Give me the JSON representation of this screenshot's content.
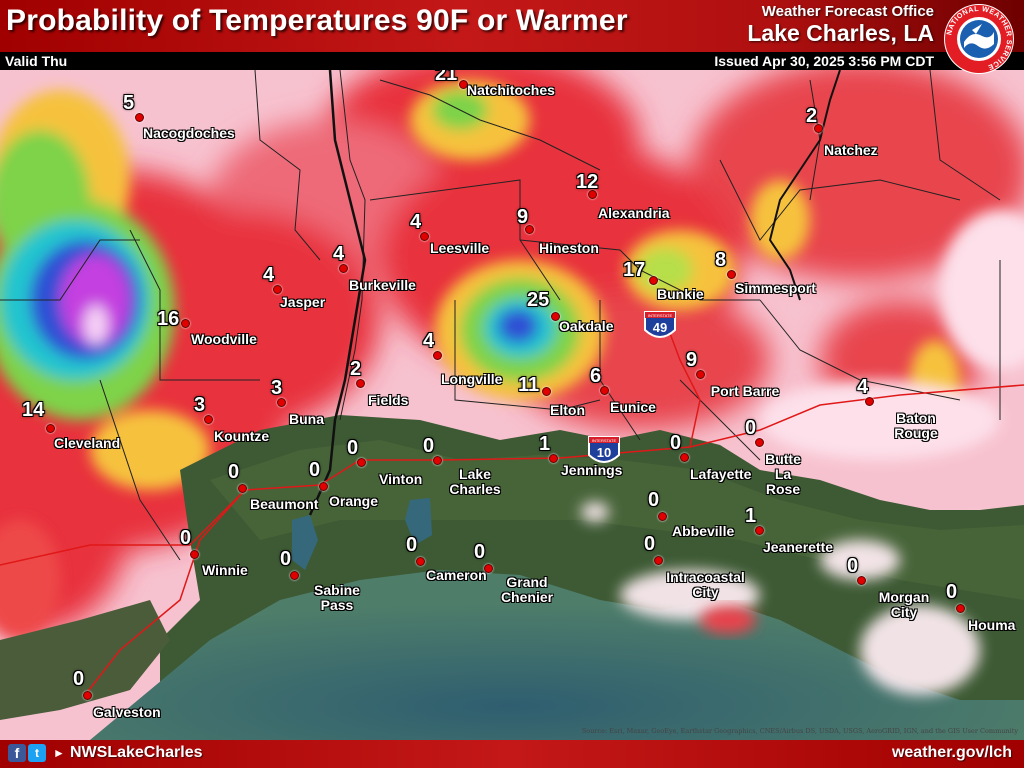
{
  "header": {
    "title": "Probability of Temperatures 90F or Warmer",
    "office_label": "Weather Forecast Office",
    "office_name": "Lake Charles, LA",
    "valid": "Valid Thu",
    "issued": "Issued Apr 30, 2025 3:56 PM CDT"
  },
  "logo": {
    "ring_text": "NATIONAL WEATHER SERVICE",
    "icon": "nws-logo"
  },
  "footer": {
    "facebook_icon": "f",
    "twitter_icon": "t",
    "youtube_icon": "►",
    "handle": "NWSLakeCharles",
    "website": "weather.gov/lch"
  },
  "attribution": "Source: Esri, Maxar, GeoEye, Earthstar Geographics, CNES/Airbus DS, USDA, USGS, AeroGRID, IGN, and the GIS User Community",
  "highway_shields": [
    {
      "label": "INTERSTATE",
      "number": "49"
    },
    {
      "label": "INTERSTATE",
      "number": "10"
    }
  ],
  "color_scale": {
    "water": "#3a6e7a",
    "land_low": "#3d5a34",
    "very_low": "#fde6ee",
    "low": "#f6a3b6",
    "moderate": "#e8323e",
    "elevated": "#f6c23c",
    "high": "#7ed34a",
    "higher": "#22c5cf",
    "very_high": "#2f4fd4",
    "peak": "#c43fe0"
  },
  "cities": [
    {
      "name": "Natchitoches",
      "value": "21"
    },
    {
      "name": "Nacogdoches",
      "value": "5"
    },
    {
      "name": "Natchez",
      "value": "2"
    },
    {
      "name": "Alexandria",
      "value": "12"
    },
    {
      "name": "Leesville",
      "value": "4"
    },
    {
      "name": "Hineston",
      "value": "9"
    },
    {
      "name": "Burkeville",
      "value": "4"
    },
    {
      "name": "Jasper",
      "value": "4"
    },
    {
      "name": "Bunkie",
      "value": "17"
    },
    {
      "name": "Simmesport",
      "value": "8"
    },
    {
      "name": "Woodville",
      "value": "16"
    },
    {
      "name": "Oakdale",
      "value": "25"
    },
    {
      "name": "Fields",
      "value": "2"
    },
    {
      "name": "Longville",
      "value": "4"
    },
    {
      "name": "Elton",
      "value": "11"
    },
    {
      "name": "Eunice",
      "value": "6"
    },
    {
      "name": "Port Barre",
      "value": "9"
    },
    {
      "name": "Baton Rouge",
      "value": "4"
    },
    {
      "name": "Cleveland",
      "value": "14"
    },
    {
      "name": "Kountze",
      "value": "3"
    },
    {
      "name": "Buna",
      "value": "3"
    },
    {
      "name": "Lake Charles",
      "value": "0"
    },
    {
      "name": "Vinton",
      "value": "0"
    },
    {
      "name": "Jennings",
      "value": "1"
    },
    {
      "name": "Lafayette",
      "value": "0"
    },
    {
      "name": "Butte La Rose",
      "value": "0"
    },
    {
      "name": "Beaumont",
      "value": "0"
    },
    {
      "name": "Orange",
      "value": "0"
    },
    {
      "name": "Abbeville",
      "value": "0"
    },
    {
      "name": "Jeanerette",
      "value": "1"
    },
    {
      "name": "Winnie",
      "value": "0"
    },
    {
      "name": "Sabine Pass",
      "value": "0"
    },
    {
      "name": "Cameron",
      "value": "0"
    },
    {
      "name": "Grand Chenier",
      "value": "0"
    },
    {
      "name": "Intracoastal City",
      "value": "0"
    },
    {
      "name": "Morgan City",
      "value": "0"
    },
    {
      "name": "Houma",
      "value": "0"
    },
    {
      "name": "Galveston",
      "value": "0"
    }
  ]
}
